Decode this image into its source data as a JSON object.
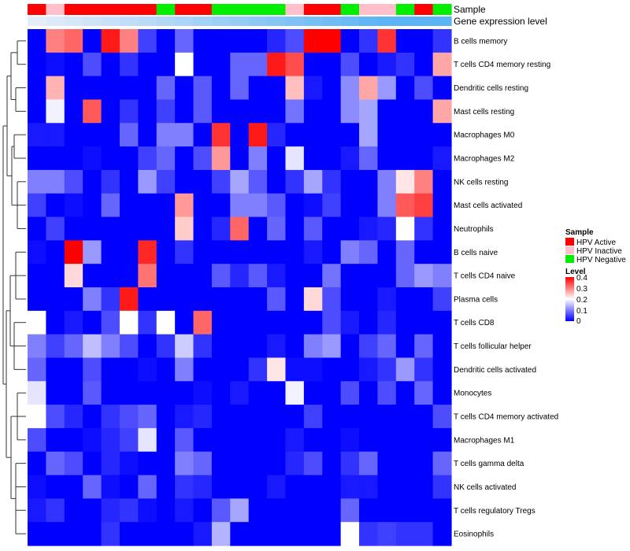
{
  "chart_data": {
    "type": "heatmap",
    "title": "",
    "annotations": {
      "sample_label": "Sample",
      "gene_label": "Gene expression level",
      "sample_groups": [
        "HPV Active",
        "HPV Inactive",
        "HPV Active",
        "HPV Active",
        "HPV Active",
        "HPV Active",
        "HPV Active",
        "HPV Negative",
        "HPV Active",
        "HPV Active",
        "HPV Negative",
        "HPV Negative",
        "HPV Negative",
        "HPV Negative",
        "HPV Inactive",
        "HPV Active",
        "HPV Active",
        "HPV Negative",
        "HPV Inactive",
        "HPV Inactive",
        "HPV Negative",
        "HPV Active",
        "HPV Negative"
      ],
      "gene_expression": [
        0.05,
        0.1,
        0.15,
        0.2,
        0.25,
        0.3,
        0.35,
        0.4,
        0.45,
        0.5,
        0.55,
        0.6,
        0.65,
        0.7,
        0.75,
        0.8,
        0.85,
        0.9,
        0.95,
        1.0,
        1.0,
        1.0,
        1.0
      ],
      "colors": {
        "HPV Active": "#ff0000",
        "HPV Inactive": "#ffc0cb",
        "HPV Negative": "#00ee00"
      }
    },
    "rows": [
      "B cells memory",
      "T cells CD4 memory resting",
      "Dendritic cells resting",
      "Mast cells resting",
      "Macrophages M0",
      "Macrophages M2",
      "NK cells resting",
      "Mast cells activated",
      "Neutrophils",
      "B cells naive",
      "T cells CD4 naive",
      "Plasma cells",
      "T cells CD8",
      "T cells follicular helper",
      "Dendritic cells activated",
      "Monocytes",
      "T cells CD4 memory activated",
      "Macrophages M1",
      "T cells gamma delta",
      "NK cells activated",
      "T cells regulatory  Tregs",
      "Eosinophils"
    ],
    "values": [
      [
        0.0,
        0.3,
        0.32,
        0.0,
        0.38,
        0.3,
        0.05,
        0.0,
        0.08,
        0.0,
        0.0,
        0.0,
        0.0,
        0.03,
        0.06,
        0.4,
        0.4,
        0.0,
        0.04,
        0.36,
        0.0,
        0.0,
        0.04
      ],
      [
        0.0,
        0.01,
        0.0,
        0.06,
        0.0,
        0.04,
        0.0,
        0.0,
        0.2,
        0.0,
        0.0,
        0.08,
        0.08,
        0.38,
        0.34,
        0.0,
        0.0,
        0.06,
        0.0,
        0.02,
        0.04,
        0.0,
        0.27
      ],
      [
        0.0,
        0.26,
        0.0,
        0.0,
        0.0,
        0.0,
        0.0,
        0.08,
        0.0,
        0.07,
        0.0,
        0.08,
        0.0,
        0.0,
        0.25,
        0.02,
        0.0,
        0.11,
        0.27,
        0.12,
        0.0,
        0.06,
        0.0
      ],
      [
        0.0,
        0.19,
        0.0,
        0.33,
        0.0,
        0.04,
        0.0,
        0.05,
        0.0,
        0.07,
        0.0,
        0.0,
        0.0,
        0.0,
        0.09,
        0.0,
        0.0,
        0.11,
        0.13,
        0.0,
        0.0,
        0.0,
        0.27
      ],
      [
        0.02,
        0.02,
        0.0,
        0.0,
        0.0,
        0.08,
        0.0,
        0.1,
        0.1,
        0.0,
        0.36,
        0.0,
        0.38,
        0.03,
        0.0,
        0.0,
        0.0,
        0.0,
        0.13,
        0.0,
        0.0,
        0.0,
        0.0
      ],
      [
        0.0,
        0.0,
        0.0,
        0.01,
        0.0,
        0.0,
        0.05,
        0.08,
        0.0,
        0.06,
        0.28,
        0.0,
        0.1,
        0.0,
        0.18,
        0.0,
        0.0,
        0.02,
        0.08,
        0.0,
        0.0,
        0.0,
        0.02
      ],
      [
        0.1,
        0.1,
        0.06,
        0.0,
        0.04,
        0.0,
        0.12,
        0.05,
        0.0,
        0.0,
        0.05,
        0.13,
        0.07,
        0.0,
        0.04,
        0.13,
        0.04,
        0.0,
        0.0,
        0.1,
        0.22,
        0.3,
        0.0
      ],
      [
        0.05,
        0.0,
        0.01,
        0.0,
        0.08,
        0.0,
        0.0,
        0.0,
        0.28,
        0.0,
        0.0,
        0.1,
        0.1,
        0.07,
        0.0,
        0.01,
        0.05,
        0.0,
        0.0,
        0.1,
        0.33,
        0.35,
        0.0
      ],
      [
        0.0,
        0.05,
        0.0,
        0.0,
        0.0,
        0.0,
        0.0,
        0.0,
        0.24,
        0.0,
        0.03,
        0.32,
        0.0,
        0.08,
        0.0,
        0.07,
        0.0,
        0.0,
        0.02,
        0.03,
        0.2,
        0.04,
        0.0
      ],
      [
        0.01,
        0.0,
        0.4,
        0.12,
        0.0,
        0.0,
        0.37,
        0.0,
        0.04,
        0.0,
        0.0,
        0.0,
        0.0,
        0.0,
        0.0,
        0.02,
        0.0,
        0.1,
        0.08,
        0.0,
        0.08,
        0.0,
        0.0
      ],
      [
        0.0,
        0.0,
        0.23,
        0.0,
        0.0,
        0.0,
        0.31,
        0.0,
        0.0,
        0.0,
        0.07,
        0.03,
        0.07,
        0.02,
        0.0,
        0.0,
        0.09,
        0.0,
        0.0,
        0.0,
        0.08,
        0.12,
        0.1
      ],
      [
        0.0,
        0.0,
        0.0,
        0.1,
        0.04,
        0.38,
        0.0,
        0.0,
        0.0,
        0.0,
        0.0,
        0.0,
        0.0,
        0.07,
        0.0,
        0.23,
        0.06,
        0.0,
        0.0,
        0.02,
        0.0,
        0.0,
        0.05
      ],
      [
        0.2,
        0.0,
        0.02,
        0.0,
        0.06,
        0.2,
        0.04,
        0.2,
        0.0,
        0.32,
        0.0,
        0.0,
        0.0,
        0.0,
        0.0,
        0.0,
        0.06,
        0.02,
        0.0,
        0.03,
        0.0,
        0.0,
        0.0
      ],
      [
        0.1,
        0.05,
        0.08,
        0.15,
        0.1,
        0.06,
        0.0,
        0.04,
        0.16,
        0.04,
        0.0,
        0.0,
        0.0,
        0.02,
        0.0,
        0.1,
        0.12,
        0.0,
        0.05,
        0.08,
        0.0,
        0.08,
        0.0
      ],
      [
        0.08,
        0.0,
        0.0,
        0.06,
        0.0,
        0.0,
        0.01,
        0.0,
        0.1,
        0.0,
        0.0,
        0.0,
        0.04,
        0.22,
        0.01,
        0.01,
        0.0,
        0.0,
        0.02,
        0.04,
        0.12,
        0.04,
        0.0
      ],
      [
        0.18,
        0.0,
        0.0,
        0.07,
        0.0,
        0.0,
        0.0,
        0.0,
        0.0,
        0.01,
        0.0,
        0.02,
        0.0,
        0.0,
        0.19,
        0.0,
        0.0,
        0.06,
        0.0,
        0.06,
        0.0,
        0.08,
        0.0
      ],
      [
        0.2,
        0.06,
        0.03,
        0.0,
        0.04,
        0.06,
        0.08,
        0.0,
        0.02,
        0.03,
        0.0,
        0.0,
        0.0,
        0.0,
        0.0,
        0.05,
        0.0,
        0.0,
        0.0,
        0.0,
        0.0,
        0.0,
        0.06
      ],
      [
        0.06,
        0.0,
        0.0,
        0.01,
        0.03,
        0.05,
        0.18,
        0.0,
        0.07,
        0.0,
        0.0,
        0.0,
        0.0,
        0.0,
        0.02,
        0.0,
        0.0,
        0.01,
        0.0,
        0.0,
        0.0,
        0.0,
        0.0
      ],
      [
        0.0,
        0.08,
        0.06,
        0.0,
        0.03,
        0.01,
        0.0,
        0.0,
        0.1,
        0.08,
        0.0,
        0.0,
        0.0,
        0.0,
        0.03,
        0.06,
        0.0,
        0.04,
        0.08,
        0.0,
        0.0,
        0.0,
        0.08
      ],
      [
        0.01,
        0.0,
        0.0,
        0.08,
        0.01,
        0.0,
        0.08,
        0.0,
        0.04,
        0.03,
        0.0,
        0.0,
        0.0,
        0.02,
        0.0,
        0.0,
        0.0,
        0.02,
        0.02,
        0.0,
        0.0,
        0.0,
        0.04
      ],
      [
        0.02,
        0.04,
        0.0,
        0.0,
        0.03,
        0.04,
        0.01,
        0.0,
        0.02,
        0.0,
        0.07,
        0.13,
        0.0,
        0.0,
        0.0,
        0.0,
        0.0,
        0.08,
        0.0,
        0.0,
        0.0,
        0.0,
        0.0
      ],
      [
        0.0,
        0.0,
        0.0,
        0.0,
        0.04,
        0.0,
        0.0,
        0.0,
        0.0,
        0.02,
        0.14,
        0.0,
        0.0,
        0.0,
        0.0,
        0.0,
        0.0,
        0.2,
        0.04,
        0.05,
        0.04,
        0.04,
        0.0
      ]
    ],
    "legend": {
      "sample_title": "Sample",
      "sample_items": [
        "HPV Active",
        "HPV Inactive",
        "HPV Negative"
      ],
      "level_title": "Level",
      "level_ticks": [
        "0.4",
        "0.3",
        "0.2",
        "0.1",
        "0"
      ],
      "level_range": [
        0,
        0.4
      ]
    },
    "color_scale": {
      "low": "#0000ff",
      "mid": "#ffffff",
      "high": "#ff0000",
      "midpoint": 0.2
    }
  }
}
